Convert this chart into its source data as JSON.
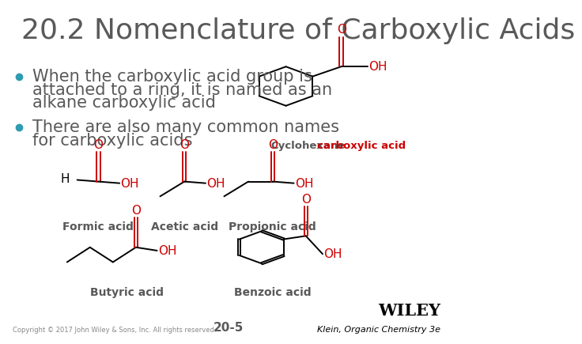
{
  "title": "20.2 Nomenclature of Carboxylic Acids",
  "title_color": "#595959",
  "title_fontsize": 26,
  "bullet_color": "#2E9BB0",
  "bullet1_line1": "When the carboxylic acid group is",
  "bullet1_line2": "attached to a ring, it is named as an",
  "bullet1_line3": "alkane carboxylic acid",
  "bullet2_line1": "There are also many common names",
  "bullet2_line2": "for carboxylic acids",
  "body_color": "#595959",
  "body_fontsize": 15,
  "footer_left": "Copyright © 2017 John Wiley & Sons, Inc. All rights reserved.",
  "footer_center": "20-5",
  "footer_right_top": "WILEY",
  "footer_right_bottom": "Klein, Organic Chemistry 3e",
  "bg_color": "#ffffff",
  "black": "#000000",
  "red_color": "#CC0000",
  "gray_color": "#595959",
  "struct_label_cyclohexane_normal": "Cyclohexane",
  "struct_label_cyclohexane_bold": "carboxylic acid",
  "struct_label_formic": "Formic acid",
  "struct_label_acetic": "Acetic acid",
  "struct_label_propionic": "Propionic acid",
  "struct_label_butyric": "Butyric acid",
  "struct_label_benzoic": "Benzoic acid"
}
